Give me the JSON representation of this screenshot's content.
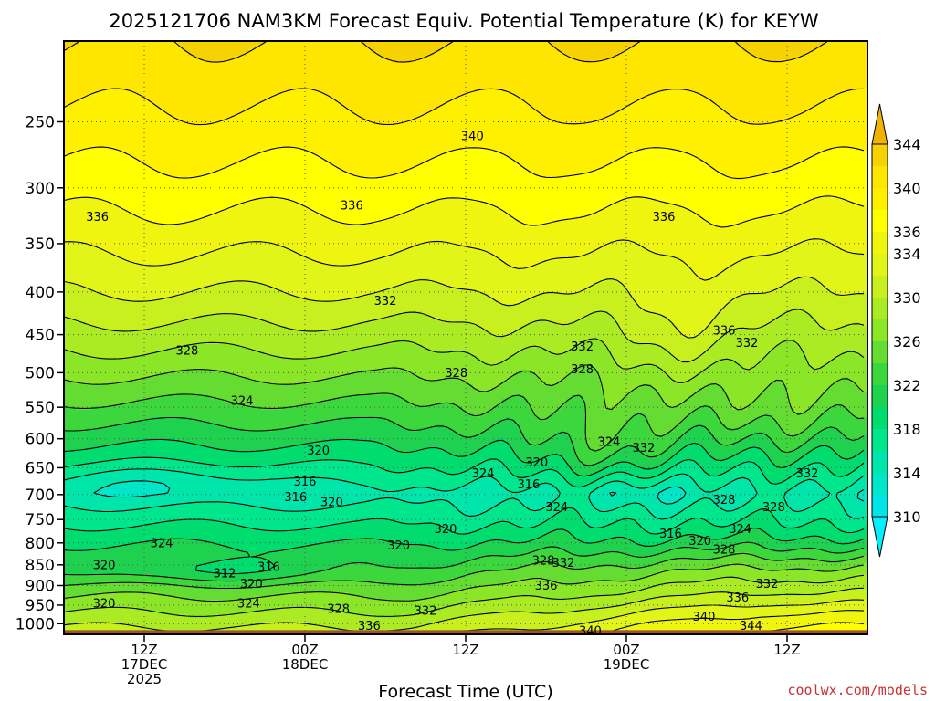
{
  "chart_data": {
    "type": "heatmap",
    "title": "2025121706 NAM3KM Forecast Equiv. Potential Temperature (K) for KEYW",
    "xlabel": "Forecast Time (UTC)",
    "ylabel": "",
    "credit": "coolwx.com/models",
    "y_axis": {
      "quantity": "pressure (hPa)",
      "scale": "log",
      "range": [
        1030,
        200
      ],
      "ticks": [
        250,
        300,
        350,
        400,
        450,
        500,
        550,
        600,
        650,
        700,
        750,
        800,
        850,
        900,
        950,
        1000
      ]
    },
    "x_axis": {
      "quantity": "forecast hour",
      "range": [
        0,
        60
      ],
      "ticks": [
        {
          "hour": 6,
          "label": [
            "12Z",
            "17DEC",
            "2025"
          ]
        },
        {
          "hour": 18,
          "label": [
            "00Z",
            "18DEC"
          ]
        },
        {
          "hour": 30,
          "label": [
            "12Z"
          ]
        },
        {
          "hour": 42,
          "label": [
            "00Z",
            "19DEC"
          ]
        },
        {
          "hour": 54,
          "label": [
            "12Z"
          ]
        }
      ]
    },
    "grid": "dotted",
    "colorbar": {
      "placement": "right",
      "levels": [
        308,
        310,
        312,
        314,
        316,
        318,
        320,
        322,
        324,
        326,
        328,
        330,
        332,
        334,
        336,
        338,
        340,
        342,
        344,
        346
      ],
      "labels": [
        310,
        314,
        318,
        322,
        326,
        330,
        334,
        336,
        340,
        344
      ],
      "colors": [
        "#00f0ff",
        "#00e6e6",
        "#00e6c8",
        "#00e6aa",
        "#00e68c",
        "#00dc6e",
        "#1ed250",
        "#3cd73c",
        "#64dc32",
        "#8ce628",
        "#aaeb23",
        "#c8f01e",
        "#e1f519",
        "#f0f50f",
        "#ffff00",
        "#fff000",
        "#ffe600",
        "#f5d200",
        "#f0b400"
      ]
    },
    "contour_interval": 2,
    "contour_labels": [
      {
        "hour": 44.8,
        "p": 325,
        "v": 336
      },
      {
        "hour": 30.5,
        "p": 260,
        "v": 340
      },
      {
        "hour": 2.5,
        "p": 325,
        "v": 336
      },
      {
        "hour": 21.5,
        "p": 315,
        "v": 336
      },
      {
        "hour": 24,
        "p": 410,
        "v": 332
      },
      {
        "hour": 9.2,
        "p": 470,
        "v": 328
      },
      {
        "hour": 13.3,
        "p": 540,
        "v": 324
      },
      {
        "hour": 19,
        "p": 620,
        "v": 320
      },
      {
        "hour": 18,
        "p": 675,
        "v": 316
      },
      {
        "hour": 17.3,
        "p": 705,
        "v": 316
      },
      {
        "hour": 20,
        "p": 715,
        "v": 320
      },
      {
        "hour": 29.3,
        "p": 500,
        "v": 328
      },
      {
        "hour": 38.7,
        "p": 465,
        "v": 332
      },
      {
        "hour": 38.7,
        "p": 495,
        "v": 328
      },
      {
        "hour": 49.3,
        "p": 445,
        "v": 336
      },
      {
        "hour": 51,
        "p": 460,
        "v": 332
      },
      {
        "hour": 40.7,
        "p": 605,
        "v": 324
      },
      {
        "hour": 43.3,
        "p": 615,
        "v": 332
      },
      {
        "hour": 35.3,
        "p": 640,
        "v": 320
      },
      {
        "hour": 31.3,
        "p": 660,
        "v": 324
      },
      {
        "hour": 34.7,
        "p": 680,
        "v": 316
      },
      {
        "hour": 36.8,
        "p": 725,
        "v": 324
      },
      {
        "hour": 28.5,
        "p": 770,
        "v": 320
      },
      {
        "hour": 25,
        "p": 805,
        "v": 320
      },
      {
        "hour": 45.3,
        "p": 780,
        "v": 316
      },
      {
        "hour": 47.5,
        "p": 795,
        "v": 320
      },
      {
        "hour": 49.3,
        "p": 815,
        "v": 328
      },
      {
        "hour": 50.5,
        "p": 770,
        "v": 324
      },
      {
        "hour": 53,
        "p": 725,
        "v": 328
      },
      {
        "hour": 49.3,
        "p": 710,
        "v": 328
      },
      {
        "hour": 55.5,
        "p": 660,
        "v": 332
      },
      {
        "hour": 7.3,
        "p": 800,
        "v": 324
      },
      {
        "hour": 3,
        "p": 850,
        "v": 320
      },
      {
        "hour": 12,
        "p": 870,
        "v": 312
      },
      {
        "hour": 15.3,
        "p": 855,
        "v": 316
      },
      {
        "hour": 14,
        "p": 895,
        "v": 320
      },
      {
        "hour": 3,
        "p": 945,
        "v": 320
      },
      {
        "hour": 13.8,
        "p": 945,
        "v": 324
      },
      {
        "hour": 20.5,
        "p": 960,
        "v": 328
      },
      {
        "hour": 27,
        "p": 965,
        "v": 332
      },
      {
        "hour": 22.8,
        "p": 1005,
        "v": 336
      },
      {
        "hour": 35.8,
        "p": 840,
        "v": 328
      },
      {
        "hour": 37.3,
        "p": 845,
        "v": 332
      },
      {
        "hour": 36,
        "p": 900,
        "v": 336
      },
      {
        "hour": 52.5,
        "p": 895,
        "v": 332
      },
      {
        "hour": 50.3,
        "p": 930,
        "v": 336
      },
      {
        "hour": 47.8,
        "p": 980,
        "v": 340
      },
      {
        "hour": 51.3,
        "p": 1005,
        "v": 344
      },
      {
        "hour": 39.3,
        "p": 1020,
        "v": 340
      }
    ],
    "ground": {
      "from_p": 1018,
      "to_p": 1030,
      "color": "#a0522d"
    }
  }
}
